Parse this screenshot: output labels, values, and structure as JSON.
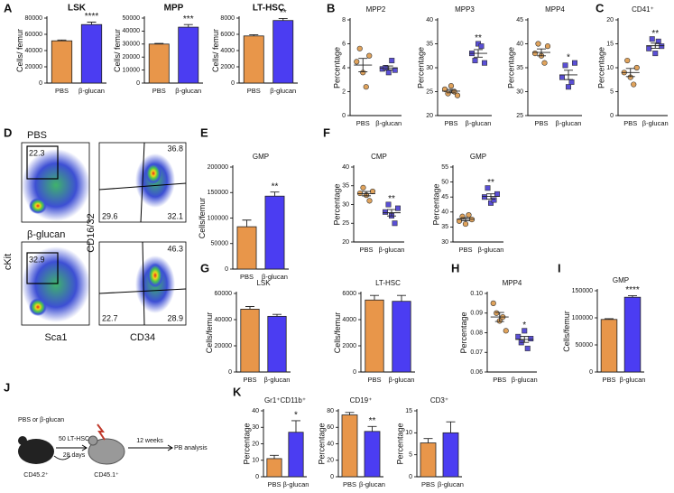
{
  "panels": [
    "A",
    "B",
    "C",
    "D",
    "E",
    "F",
    "G",
    "H",
    "I",
    "J",
    "K"
  ],
  "flow": {
    "top": "PBS",
    "bottom": "β-glucan",
    "gates": [
      22.3,
      32.9
    ],
    "quadrants": [
      [
        36.8,
        29.6,
        32.1
      ],
      [
        46.3,
        22.7,
        28.9
      ]
    ],
    "left_y": "cKit",
    "left_x": "Sca1",
    "right_y": "CD16/32",
    "right_x": "CD34"
  },
  "diagram": {
    "treatment": "PBS or β-glucan",
    "transfer": "50 LT-HSC",
    "time": "28 days",
    "donor": "CD45.2⁺",
    "recipient": "CD45.1⁺",
    "wait": "12 weeks",
    "analysis": "PB analysis"
  },
  "chart_data": [
    {
      "type": "bar",
      "title": "LSK",
      "y_label": "Cells/ femur",
      "categories": [
        "PBS",
        "β-glucan"
      ],
      "values": [
        52000,
        72000
      ],
      "errors": [
        1000,
        3000
      ],
      "colors": [
        "#e8964a",
        "#4b3df2"
      ],
      "ylim": [
        0,
        80000
      ],
      "yticks": [
        0,
        20000,
        40000,
        60000,
        80000
      ],
      "significance": "****"
    },
    {
      "type": "bar",
      "title": "MPP",
      "y_label": "Cells/ femur",
      "categories": [
        "PBS",
        "β-glucan"
      ],
      "values": [
        30000,
        43000
      ],
      "errors": [
        500,
        2000
      ],
      "colors": [
        "#e8964a",
        "#4b3df2"
      ],
      "ylim": [
        0,
        50000
      ],
      "yticks": [
        0,
        10000,
        20000,
        30000,
        40000,
        50000
      ],
      "significance": "***"
    },
    {
      "type": "bar",
      "title": "LT-HSC",
      "y_label": "Cells/ femur",
      "categories": [
        "PBS",
        "β-glucan"
      ],
      "values": [
        5800,
        7700
      ],
      "errors": [
        150,
        250
      ],
      "colors": [
        "#e8964a",
        "#4b3df2"
      ],
      "ylim": [
        0,
        8000
      ],
      "yticks": [
        0,
        2000,
        4000,
        6000,
        8000
      ],
      "significance": "**"
    },
    {
      "type": "strip",
      "title": "MPP2",
      "y_label": "Percentage",
      "categories": [
        "PBS",
        "β-glucan"
      ],
      "values": [
        [
          4.5,
          5.6,
          3.6,
          2.4,
          5.0
        ],
        [
          3.9,
          4.0,
          3.6,
          4.6,
          3.8
        ]
      ],
      "colors": [
        "#e0a35c",
        "#5a4fd6"
      ],
      "markers": [
        "circle",
        "square"
      ],
      "ylim": [
        0,
        8
      ],
      "yticks": [
        0,
        2,
        4,
        6,
        8
      ]
    },
    {
      "type": "strip",
      "title": "MPP3",
      "y_label": "Percentage",
      "categories": [
        "PBS",
        "β-glucan"
      ],
      "values": [
        [
          25.5,
          24.6,
          26.2,
          25.0,
          24.2
        ],
        [
          33,
          31.5,
          35,
          34.5,
          31
        ]
      ],
      "colors": [
        "#e0a35c",
        "#5a4fd6"
      ],
      "markers": [
        "circle",
        "square"
      ],
      "ylim": [
        20,
        40
      ],
      "yticks": [
        20,
        25,
        30,
        35,
        40
      ],
      "significance": "**"
    },
    {
      "type": "strip",
      "title": "MPP4",
      "y_label": "Percentage",
      "categories": [
        "PBS",
        "β-glucan"
      ],
      "values": [
        [
          38,
          40,
          37.5,
          36,
          39.5
        ],
        [
          33,
          35.5,
          31,
          32,
          36
        ]
      ],
      "colors": [
        "#e0a35c",
        "#5a4fd6"
      ],
      "markers": [
        "circle",
        "square"
      ],
      "ylim": [
        25,
        45
      ],
      "yticks": [
        25,
        30,
        35,
        40,
        45
      ],
      "significance": "*"
    },
    {
      "type": "strip",
      "title": "CD41⁺",
      "y_label": "Percentage",
      "categories": [
        "PBS",
        "β-glucan"
      ],
      "values": [
        [
          9,
          11.5,
          8,
          6.5,
          10
        ],
        [
          14,
          16,
          13,
          15.5,
          14.5
        ]
      ],
      "colors": [
        "#e0a35c",
        "#5a4fd6"
      ],
      "markers": [
        "circle",
        "square"
      ],
      "ylim": [
        0,
        20
      ],
      "yticks": [
        0,
        5,
        10,
        15,
        20
      ],
      "significance": "**"
    },
    {
      "type": "bar",
      "title": "GMP",
      "y_label": "Cells/femur",
      "categories": [
        "PBS",
        "β-glucan"
      ],
      "values": [
        83000,
        143000
      ],
      "errors": [
        13000,
        8000
      ],
      "colors": [
        "#e8964a",
        "#4b3df2"
      ],
      "ylim": [
        0,
        200000
      ],
      "yticks": [
        0,
        50000,
        100000,
        150000,
        200000
      ],
      "significance": "**"
    },
    {
      "type": "strip",
      "title": "CMP",
      "y_label": "Percentage",
      "categories": [
        "PBS",
        "β-glucan"
      ],
      "values": [
        [
          33,
          34.5,
          32.5,
          31,
          33.5
        ],
        [
          28,
          30,
          27,
          25,
          29
        ]
      ],
      "colors": [
        "#e0a35c",
        "#5a4fd6"
      ],
      "markers": [
        "circle",
        "square"
      ],
      "ylim": [
        20,
        40
      ],
      "yticks": [
        20,
        25,
        30,
        35,
        40
      ],
      "significance": "**"
    },
    {
      "type": "strip",
      "title": "GMP",
      "y_label": "Percentage",
      "categories": [
        "PBS",
        "β-glucan"
      ],
      "values": [
        [
          37,
          38.5,
          36,
          39,
          37.5
        ],
        [
          45,
          48,
          43,
          44,
          46
        ]
      ],
      "colors": [
        "#e0a35c",
        "#5a4fd6"
      ],
      "markers": [
        "circle",
        "square"
      ],
      "ylim": [
        30,
        55
      ],
      "yticks": [
        30,
        35,
        40,
        45,
        50,
        55
      ],
      "significance": "**"
    },
    {
      "type": "bar",
      "title": "LSK",
      "y_label": "Cells/femur",
      "categories": [
        "PBS",
        "β-glucan"
      ],
      "values": [
        48000,
        42500
      ],
      "errors": [
        2000,
        1500
      ],
      "colors": [
        "#e8964a",
        "#4b3df2"
      ],
      "ylim": [
        0,
        60000
      ],
      "yticks": [
        0,
        20000,
        40000,
        60000
      ]
    },
    {
      "type": "bar",
      "title": "LT-HSC",
      "y_label": "Cells/femur",
      "categories": [
        "PBS",
        "β-glucan"
      ],
      "values": [
        5500,
        5400
      ],
      "errors": [
        350,
        450
      ],
      "colors": [
        "#e8964a",
        "#4b3df2"
      ],
      "ylim": [
        0,
        6000
      ],
      "yticks": [
        0,
        2000,
        4000,
        6000
      ]
    },
    {
      "type": "strip",
      "title": "MPP4",
      "y_label": "Percentage",
      "categories": [
        "PBS",
        "β-glucan"
      ],
      "values": [
        [
          0.095,
          0.09,
          0.086,
          0.088,
          0.081
        ],
        [
          0.078,
          0.075,
          0.081,
          0.072,
          0.077
        ]
      ],
      "colors": [
        "#e0a35c",
        "#5a4fd6"
      ],
      "markers": [
        "circle",
        "square"
      ],
      "ylim": [
        0.06,
        0.1
      ],
      "yticks": [
        0.06,
        0.07,
        0.08,
        0.09,
        {
          "value": 0.1,
          "label": "0.10"
        }
      ],
      "significance": "*"
    },
    {
      "type": "bar",
      "title": "GMP",
      "y_label": "Cells/femur",
      "categories": [
        "PBS",
        "β-glucan"
      ],
      "values": [
        97000,
        138000
      ],
      "errors": [
        1500,
        3000
      ],
      "colors": [
        "#e8964a",
        "#4b3df2"
      ],
      "ylim": [
        0,
        150000
      ],
      "yticks": [
        0,
        50000,
        100000,
        150000
      ],
      "significance": "****"
    },
    {
      "type": "bar",
      "title": "Gr1⁺CD11b⁺",
      "y_label": "Percentage",
      "categories": [
        "PBS",
        "β-glucan"
      ],
      "values": [
        11,
        27
      ],
      "errors": [
        2,
        7
      ],
      "colors": [
        "#e8964a",
        "#4b3df2"
      ],
      "ylim": [
        0,
        40
      ],
      "yticks": [
        0,
        10,
        20,
        30,
        40
      ],
      "significance": "*"
    },
    {
      "type": "bar",
      "title": "CD19⁺",
      "y_label": "Percentage",
      "categories": [
        "PBS",
        "β-glucan"
      ],
      "values": [
        75,
        55
      ],
      "errors": [
        3,
        6
      ],
      "colors": [
        "#e8964a",
        "#4b3df2"
      ],
      "ylim": [
        0,
        80
      ],
      "yticks": [
        0,
        20,
        40,
        60,
        80
      ],
      "significance": "**"
    },
    {
      "type": "bar",
      "title": "CD3⁺",
      "y_label": "Percentage",
      "categories": [
        "PBS",
        "β-glucan"
      ],
      "values": [
        7.7,
        10
      ],
      "errors": [
        1,
        2.5
      ],
      "colors": [
        "#e8964a",
        "#4b3df2"
      ],
      "ylim": [
        0,
        15
      ],
      "yticks": [
        0,
        5,
        10,
        15
      ]
    }
  ]
}
